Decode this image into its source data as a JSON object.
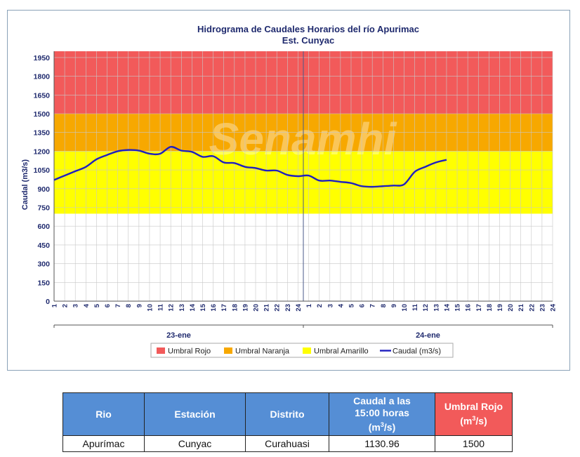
{
  "chart_data": {
    "type": "line",
    "title": "Hidrograma de Caudales Horarios del río Apurimac",
    "subtitle": "Est. Cunyac",
    "ylabel": "Caudal  (m3/s)",
    "watermark": "Senamhi",
    "ylim": [
      0,
      2000
    ],
    "yticks": [
      0,
      150,
      300,
      450,
      600,
      750,
      900,
      1050,
      1200,
      1350,
      1500,
      1650,
      1800,
      1950
    ],
    "x_tick_labels": [
      "1",
      "2",
      "3",
      "4",
      "5",
      "6",
      "7",
      "8",
      "9",
      "10",
      "11",
      "12",
      "13",
      "14",
      "15",
      "16",
      "17",
      "18",
      "19",
      "20",
      "21",
      "22",
      "23",
      "24",
      "1",
      "2",
      "3",
      "4",
      "5",
      "6",
      "7",
      "8",
      "9",
      "10",
      "11",
      "12",
      "13",
      "14",
      "15",
      "16",
      "17",
      "18",
      "19",
      "20",
      "21",
      "22",
      "23",
      "24"
    ],
    "groups": [
      "23-ene",
      "24-ene"
    ],
    "bands": [
      {
        "name": "Umbral Rojo",
        "from": 1500,
        "to": 2000,
        "color": "#f25a5a"
      },
      {
        "name": "Umbral Naranja",
        "from": 1200,
        "to": 1500,
        "color": "#f7a800"
      },
      {
        "name": "Umbral Amarillo",
        "from": 700,
        "to": 1200,
        "color": "#ffff00"
      }
    ],
    "series": [
      {
        "name": "Caudal (m3/s)",
        "color": "#1f1fbf",
        "values": [
          970,
          1005,
          1040,
          1075,
          1135,
          1170,
          1200,
          1210,
          1205,
          1180,
          1180,
          1235,
          1205,
          1195,
          1155,
          1160,
          1110,
          1105,
          1075,
          1065,
          1045,
          1045,
          1010,
          1000,
          1005,
          965,
          965,
          955,
          945,
          920,
          915,
          920,
          925,
          935,
          1035,
          1075,
          1110,
          1130.96
        ]
      }
    ],
    "legend_position": "bottom"
  },
  "table": {
    "headers": {
      "rio": "Rio",
      "estacion": "Estación",
      "distrito": "Distrito",
      "caudal_l1": "Caudal a las",
      "caudal_l2": "15:00 horas",
      "caudal_l3": "(m",
      "caudal_sup": "3",
      "caudal_l4": "/s)",
      "umbral_l1": "Umbral Rojo",
      "umbral_l2": "(m",
      "umbral_sup": "3",
      "umbral_l3": "/s)"
    },
    "row": {
      "rio": "Apurímac",
      "estacion": "Cunyac",
      "distrito": "Curahuasi",
      "caudal": "1130.96",
      "umbral": "1500"
    }
  }
}
